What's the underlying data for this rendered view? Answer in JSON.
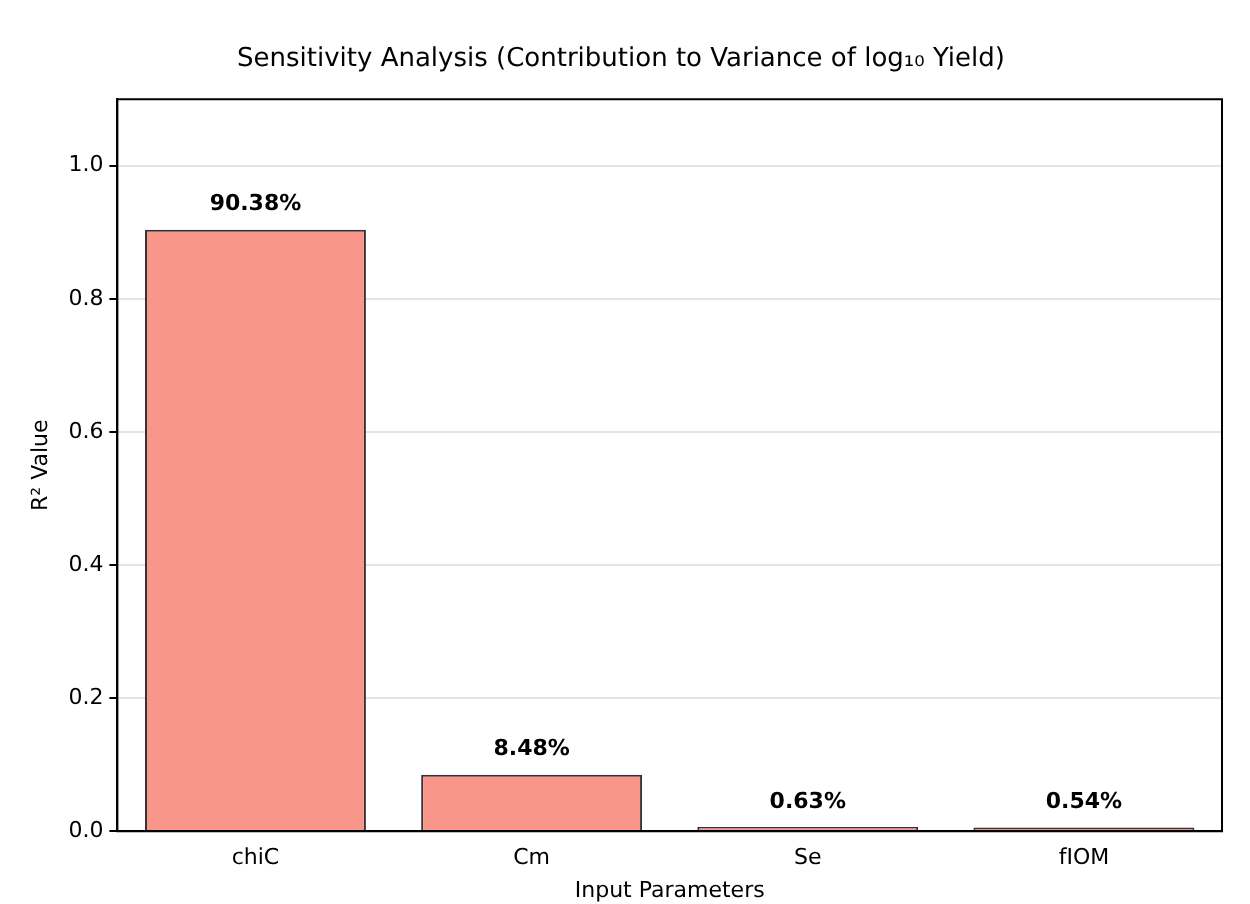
{
  "chart_data": {
    "type": "bar",
    "title": "Sensitivity Analysis (Contribution to Variance of log₁₀ Yield)",
    "xlabel": "Input Parameters",
    "ylabel": "R² Value",
    "categories": [
      "chiC",
      "Cm",
      "Se",
      "fIOM"
    ],
    "values": [
      0.9038,
      0.0848,
      0.0063,
      0.0054
    ],
    "value_labels": [
      "90.38%",
      "8.48%",
      "0.63%",
      "0.54%"
    ],
    "color": "#f8968b",
    "ylim": [
      0,
      1.1
    ],
    "yticks": [
      {
        "value": 0,
        "label": "0.0"
      },
      0.2,
      0.4,
      0.6,
      0.8,
      {
        "value": 1,
        "label": "1.0"
      }
    ],
    "grid": "y",
    "legend": false
  }
}
